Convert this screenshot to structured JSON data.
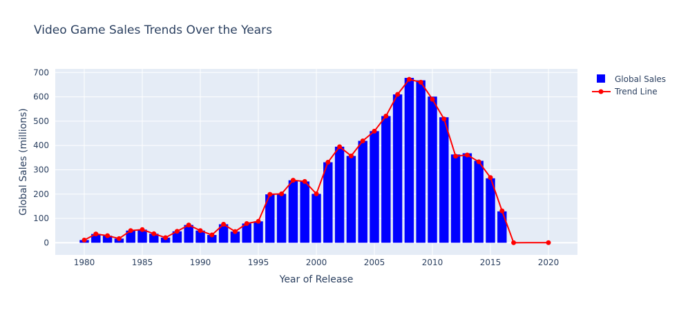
{
  "chart_data": {
    "type": "bar",
    "title": "Video Game Sales Trends Over the Years",
    "xlabel": "Year of Release",
    "ylabel": "Global Sales (millions)",
    "xlim": [
      1977.5,
      2022.5
    ],
    "ylim": [
      -50,
      715
    ],
    "xticks": [
      1980,
      1985,
      1990,
      1995,
      2000,
      2005,
      2010,
      2015,
      2020
    ],
    "yticks": [
      0,
      100,
      200,
      300,
      400,
      500,
      600,
      700
    ],
    "grid": true,
    "legend_position": "top-right",
    "colors": {
      "bars": "#0000ff",
      "line": "#ff0000",
      "plot_bg": "#e5ecf6",
      "grid": "#ffffff",
      "text": "#2a3f5f"
    },
    "series": [
      {
        "name": "Global Sales",
        "type": "bar",
        "x": [
          1980,
          1981,
          1982,
          1983,
          1984,
          1985,
          1986,
          1987,
          1988,
          1989,
          1990,
          1991,
          1992,
          1993,
          1994,
          1995,
          1996,
          1997,
          1998,
          1999,
          2000,
          2001,
          2002,
          2003,
          2004,
          2005,
          2006,
          2007,
          2008,
          2009,
          2010,
          2011,
          2012,
          2013,
          2014,
          2015,
          2016
        ],
        "values": [
          11,
          36,
          29,
          17,
          50,
          54,
          37,
          21,
          47,
          73,
          50,
          32,
          76,
          46,
          79,
          88,
          199,
          201,
          257,
          252,
          201,
          331,
          395,
          357,
          419,
          459,
          521,
          610,
          678,
          668,
          601,
          516,
          363,
          368,
          337,
          265,
          129
        ]
      },
      {
        "name": "Trend Line",
        "type": "line",
        "x": [
          1980,
          1981,
          1982,
          1983,
          1984,
          1985,
          1986,
          1987,
          1988,
          1989,
          1990,
          1991,
          1992,
          1993,
          1994,
          1995,
          1996,
          1997,
          1998,
          1999,
          2000,
          2001,
          2002,
          2003,
          2004,
          2005,
          2006,
          2007,
          2008,
          2009,
          2010,
          2011,
          2012,
          2013,
          2014,
          2015,
          2016,
          2017,
          2020
        ],
        "values": [
          11,
          36,
          29,
          17,
          50,
          54,
          37,
          21,
          47,
          73,
          50,
          32,
          76,
          46,
          79,
          88,
          199,
          201,
          257,
          252,
          201,
          331,
          395,
          357,
          419,
          459,
          521,
          610,
          672,
          660,
          590,
          509,
          356,
          361,
          333,
          268,
          131,
          0.05,
          0.29
        ]
      }
    ]
  }
}
